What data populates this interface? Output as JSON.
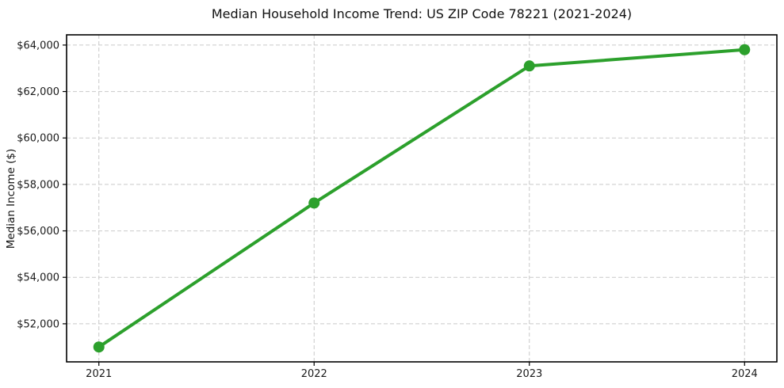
{
  "chart_data": {
    "type": "line",
    "title": "Median Household Income Trend: US ZIP Code 78221 (2021-2024)",
    "xlabel": "",
    "ylabel": "Median Income ($)",
    "x": [
      2021,
      2022,
      2023,
      2024
    ],
    "values": [
      51000,
      57200,
      63100,
      63800
    ],
    "series_name": "Median household income",
    "xticks": {
      "values": [
        2021,
        2022,
        2023,
        2024
      ],
      "labels": [
        "2021",
        "2022",
        "2023",
        "2024"
      ]
    },
    "yticks": {
      "values": [
        52000,
        54000,
        56000,
        58000,
        60000,
        62000,
        64000
      ],
      "labels": [
        "$52,000",
        "$54,000",
        "$56,000",
        "$58,000",
        "$60,000",
        "$62,000",
        "$64,000"
      ]
    },
    "xlim": [
      2020.85,
      2024.15
    ],
    "ylim": [
      50360,
      64440
    ],
    "grid": true,
    "legend": "none",
    "line_color": "#2ca02c",
    "marker_color": "#2ca02c",
    "grid_color": "#c9c9c9",
    "axis_color": "#000000",
    "tick_label_color": "#1a1a1a"
  }
}
